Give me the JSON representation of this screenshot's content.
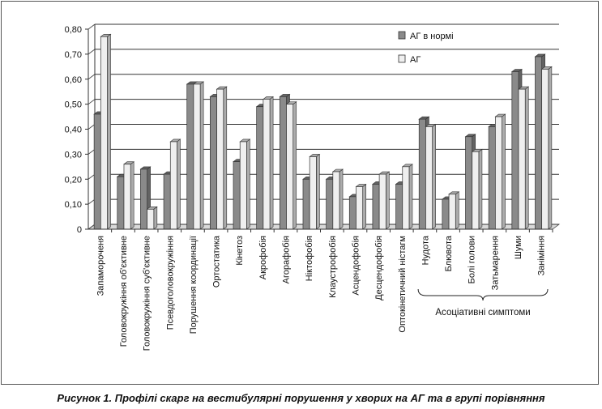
{
  "caption": "Рисунок 1. Профілі скарг на вестибулярні порушення у хворих на АГ та в групі порівняння",
  "chart_data": {
    "type": "bar",
    "categories": [
      "Запамороченя",
      "Головокружіння об'єктивне",
      "Головокружіння суб'єктивне",
      "Псевдоголовокружіння",
      "Порушення координації",
      "Ортостатика",
      "Кінетоз",
      "Акрофобія",
      "Агорафобія",
      "Ніктофобія",
      "Клаустрофобія",
      "Асцендофобія",
      "Десцендофобія",
      "Оптокінетичний ністагм",
      "Нудота",
      "Блювота",
      "Болі голови",
      "Затьмарення",
      "Шуми",
      "Заніміння"
    ],
    "series": [
      {
        "name": "АГ в нормі",
        "color": "#8a8a8a",
        "values": [
          0.46,
          0.21,
          0.24,
          0.22,
          0.58,
          0.53,
          0.27,
          0.49,
          0.53,
          0.2,
          0.2,
          0.13,
          0.18,
          0.18,
          0.44,
          0.12,
          0.37,
          0.41,
          0.63,
          0.69
        ]
      },
      {
        "name": "АГ",
        "color": "#efefef",
        "values": [
          0.77,
          0.26,
          0.08,
          0.35,
          0.58,
          0.56,
          0.35,
          0.52,
          0.5,
          0.29,
          0.23,
          0.17,
          0.22,
          0.25,
          0.41,
          0.14,
          0.31,
          0.45,
          0.56,
          0.64
        ]
      }
    ],
    "ylim": [
      0,
      0.8
    ],
    "yticks": [
      "0",
      "0,10",
      "0,20",
      "0,30",
      "0,40",
      "0,50",
      "0,60",
      "0,70",
      "0,80"
    ],
    "grid": true,
    "legend_position": "top-right",
    "group_label": "Асоціативні симптоми",
    "group_range": [
      14,
      19
    ]
  }
}
